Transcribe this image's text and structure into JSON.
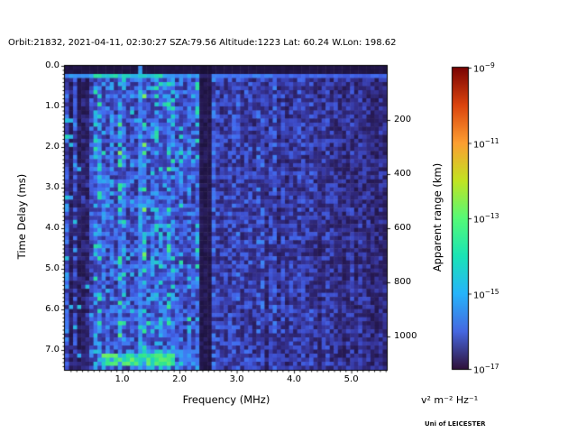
{
  "figure": {
    "title": "Orbit:21832, 2021-04-11, 02:30:27 SZA:79.56 Altitude:1223 Lat: 60.24 W.Lon: 198.62",
    "watermark": "Uni of LEICESTER",
    "background": "#ffffff"
  },
  "chart_data": {
    "type": "heatmap",
    "subtype": "radar-ionogram-spectrogram",
    "title": "Orbit:21832, 2021-04-11, 02:30:27 SZA:79.56 Altitude:1223 Lat: 60.24 W.Lon: 198.62",
    "xlabel": "Frequency (MHz)",
    "ylabel_left": "Time Delay (ms)",
    "ylabel_right": "Apparent range (km)",
    "x_range_mhz": [
      0.0,
      5.62
    ],
    "y_range_ms": [
      0.0,
      7.49
    ],
    "km_per_ms": 150,
    "x_ticks": [
      {
        "v": 1.0,
        "label": "1.0"
      },
      {
        "v": 2.0,
        "label": "2.0"
      },
      {
        "v": 3.0,
        "label": "3.0"
      },
      {
        "v": 4.0,
        "label": "4.0"
      },
      {
        "v": 5.0,
        "label": "5.0"
      }
    ],
    "x_minor_step": 0.1,
    "y_ticks": [
      {
        "v": 0.0,
        "label": "0.0"
      },
      {
        "v": 1.0,
        "label": "1.0"
      },
      {
        "v": 2.0,
        "label": "2.0"
      },
      {
        "v": 3.0,
        "label": "3.0"
      },
      {
        "v": 4.0,
        "label": "4.0"
      },
      {
        "v": 5.0,
        "label": "5.0"
      },
      {
        "v": 6.0,
        "label": "6.0"
      },
      {
        "v": 7.0,
        "label": "7.0"
      }
    ],
    "y_minor_step": 0.1,
    "right_ticks_km": [
      {
        "km": 200,
        "label": "200"
      },
      {
        "km": 400,
        "label": "400"
      },
      {
        "km": 600,
        "label": "600"
      },
      {
        "km": 800,
        "label": "800"
      },
      {
        "km": 1000,
        "label": "1000"
      }
    ],
    "colorbar": {
      "unit_label": "v² m⁻² Hz⁻¹",
      "scale": "log",
      "colormap": "turbo",
      "value_top": "1e-9",
      "value_bottom": "1e-17",
      "ticks": [
        {
          "exp": -9,
          "exp_label": "−9"
        },
        {
          "exp": -11,
          "exp_label": "−11"
        },
        {
          "exp": -13,
          "exp_label": "−13"
        },
        {
          "exp": -15,
          "exp_label": "−15"
        },
        {
          "exp": -17,
          "exp_label": "−17"
        }
      ],
      "gradient_stops": [
        [
          0.0,
          "#7a0403"
        ],
        [
          0.125,
          "#db440e"
        ],
        [
          0.25,
          "#fd9e31"
        ],
        [
          0.375,
          "#c2e422"
        ],
        [
          0.5,
          "#55fa77"
        ],
        [
          0.625,
          "#1ae4b6"
        ],
        [
          0.75,
          "#26b4fb"
        ],
        [
          0.875,
          "#4668e1"
        ],
        [
          1.0,
          "#30123b"
        ]
      ]
    },
    "colors": {
      "heatmap_stops": [
        [
          0.0,
          "#180f33"
        ],
        [
          0.12,
          "#271a55"
        ],
        [
          0.25,
          "#353294"
        ],
        [
          0.38,
          "#3e50cf"
        ],
        [
          0.5,
          "#426aee"
        ],
        [
          0.6,
          "#3c88f4"
        ],
        [
          0.7,
          "#2cacf0"
        ],
        [
          0.8,
          "#21cec4"
        ],
        [
          0.88,
          "#30e68d"
        ],
        [
          1.0,
          "#7ef05a"
        ]
      ],
      "axis": "#000000"
    },
    "grid": {
      "ncols": 79,
      "nrows": 75,
      "seed": 20210411
    },
    "features": {
      "dark_top_band_ms": [
        0.0,
        0.2
      ],
      "bright_horizontal_line_ms": [
        0.2,
        0.34
      ],
      "vertical_interference_line_mhz": 1.31,
      "dark_vertical_band_mhz": [
        2.36,
        2.54
      ],
      "left_dark_stripes_mhz": [
        [
          0.06,
          0.12
        ],
        [
          0.19,
          0.25
        ],
        [
          0.3,
          0.44
        ],
        [
          0.47,
          0.51
        ]
      ],
      "bright_region_mhz": [
        0.52,
        2.36
      ],
      "right_fade_start_mhz": 2.6,
      "bottom_echo_blob": {
        "mhz": [
          0.63,
          1.89
        ],
        "ms": [
          7.09,
          7.38
        ]
      },
      "bottom_echo_halo": {
        "mhz": [
          0.44,
          2.25
        ],
        "ms": [
          7.0,
          7.42
        ]
      }
    }
  }
}
